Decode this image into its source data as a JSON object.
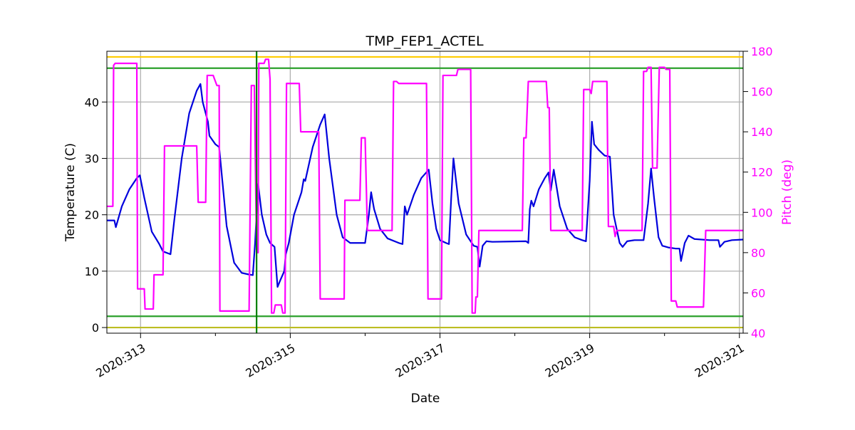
{
  "chart_data": {
    "type": "line",
    "title": "TMP_FEP1_ACTEL",
    "xlabel": "Date",
    "ylabel_left": "Temperature (C)",
    "ylabel_right": "Pitch (deg)",
    "xlim": [
      312.55,
      321.05
    ],
    "ylim_left": [
      -1,
      49
    ],
    "ylim_right": [
      40,
      180
    ],
    "x_ticks": [
      {
        "value": 313,
        "label": "2020:313"
      },
      {
        "value": 315,
        "label": "2020:315"
      },
      {
        "value": 317,
        "label": "2020:317"
      },
      {
        "value": 319,
        "label": "2020:319"
      },
      {
        "value": 321,
        "label": "2020:321"
      }
    ],
    "x_minor_ticks": [
      314,
      316,
      318,
      320
    ],
    "y_left_ticks": [
      0,
      10,
      20,
      30,
      40
    ],
    "y_right_ticks": [
      40,
      60,
      80,
      100,
      120,
      140,
      160,
      180
    ],
    "grid": true,
    "colors": {
      "temperature": "#0000dd",
      "pitch": "#ff00ff",
      "limit_yellow": "#ffcc00",
      "limit_green": "#2ca02c",
      "limit_olive": "#bcbd22",
      "marker_green": "#008000",
      "grid": "#b0b0b0"
    },
    "reference_lines": [
      {
        "y": 48,
        "color": "#ffcc00"
      },
      {
        "y": 46,
        "color": "#2ca02c"
      },
      {
        "y": 2,
        "color": "#2ca02c"
      },
      {
        "y": 0,
        "color": "#bcbd22"
      }
    ],
    "vertical_marker_x": 314.55,
    "series": [
      {
        "axis": "left",
        "color": "#0000dd",
        "points": [
          [
            312.55,
            19.0
          ],
          [
            312.65,
            19.0
          ],
          [
            312.67,
            17.8
          ],
          [
            312.75,
            21.5
          ],
          [
            312.85,
            24.5
          ],
          [
            312.95,
            26.5
          ],
          [
            312.99,
            27.0
          ],
          [
            313.05,
            23.0
          ],
          [
            313.15,
            17.0
          ],
          [
            313.25,
            14.8
          ],
          [
            313.3,
            13.5
          ],
          [
            313.4,
            13.0
          ],
          [
            313.45,
            19.0
          ],
          [
            313.55,
            30.0
          ],
          [
            313.65,
            38.0
          ],
          [
            313.75,
            42.0
          ],
          [
            313.8,
            43.2
          ],
          [
            313.83,
            40.0
          ],
          [
            313.9,
            36.5
          ],
          [
            313.92,
            34.0
          ],
          [
            314.0,
            32.5
          ],
          [
            314.05,
            32.0
          ],
          [
            314.1,
            25.0
          ],
          [
            314.15,
            18.0
          ],
          [
            314.25,
            11.5
          ],
          [
            314.35,
            9.7
          ],
          [
            314.45,
            9.4
          ],
          [
            314.5,
            9.3
          ],
          [
            314.53,
            15.0
          ],
          [
            314.57,
            25.5
          ],
          [
            314.62,
            20.0
          ],
          [
            314.68,
            16.5
          ],
          [
            314.73,
            15.0
          ],
          [
            314.79,
            14.3
          ],
          [
            314.83,
            7.2
          ],
          [
            314.87,
            8.5
          ],
          [
            314.92,
            10.0
          ],
          [
            314.94,
            13.0
          ],
          [
            314.98,
            15.0
          ],
          [
            315.05,
            20.0
          ],
          [
            315.15,
            24.0
          ],
          [
            315.18,
            26.3
          ],
          [
            315.2,
            26.0
          ],
          [
            315.3,
            32.0
          ],
          [
            315.4,
            36.0
          ],
          [
            315.46,
            37.8
          ],
          [
            315.52,
            30.0
          ],
          [
            315.62,
            20.0
          ],
          [
            315.7,
            16.0
          ],
          [
            315.8,
            15.0
          ],
          [
            316.0,
            15.0
          ],
          [
            316.05,
            20.0
          ],
          [
            316.08,
            24.0
          ],
          [
            316.12,
            21.0
          ],
          [
            316.2,
            17.5
          ],
          [
            316.3,
            15.8
          ],
          [
            316.45,
            15.0
          ],
          [
            316.5,
            14.8
          ],
          [
            316.53,
            21.5
          ],
          [
            316.56,
            20.0
          ],
          [
            316.65,
            23.5
          ],
          [
            316.75,
            26.5
          ],
          [
            316.85,
            28.0
          ],
          [
            316.9,
            22.0
          ],
          [
            316.95,
            17.5
          ],
          [
            317.0,
            15.5
          ],
          [
            317.08,
            15.0
          ],
          [
            317.12,
            14.8
          ],
          [
            317.15,
            23.0
          ],
          [
            317.18,
            30.0
          ],
          [
            317.25,
            22.0
          ],
          [
            317.35,
            16.5
          ],
          [
            317.45,
            14.5
          ],
          [
            317.5,
            14.3
          ],
          [
            317.53,
            10.8
          ],
          [
            317.57,
            14.5
          ],
          [
            317.62,
            15.3
          ],
          [
            317.7,
            15.2
          ],
          [
            318.15,
            15.3
          ],
          [
            318.18,
            15.0
          ],
          [
            318.2,
            21.0
          ],
          [
            318.22,
            22.5
          ],
          [
            318.25,
            21.5
          ],
          [
            318.32,
            24.5
          ],
          [
            318.4,
            26.5
          ],
          [
            318.45,
            27.5
          ],
          [
            318.48,
            24.3
          ],
          [
            318.52,
            28.0
          ],
          [
            318.6,
            21.5
          ],
          [
            318.7,
            17.5
          ],
          [
            318.8,
            16.0
          ],
          [
            318.9,
            15.5
          ],
          [
            318.95,
            15.3
          ],
          [
            319.0,
            26.0
          ],
          [
            319.03,
            36.5
          ],
          [
            319.06,
            32.5
          ],
          [
            319.12,
            31.5
          ],
          [
            319.2,
            30.5
          ],
          [
            319.27,
            30.3
          ],
          [
            319.32,
            20.0
          ],
          [
            319.4,
            15.0
          ],
          [
            319.44,
            14.3
          ],
          [
            319.5,
            15.3
          ],
          [
            319.6,
            15.5
          ],
          [
            319.72,
            15.5
          ],
          [
            319.78,
            22.0
          ],
          [
            319.82,
            28.2
          ],
          [
            319.86,
            23.0
          ],
          [
            319.92,
            16.0
          ],
          [
            319.97,
            14.5
          ],
          [
            320.05,
            14.2
          ],
          [
            320.15,
            14.0
          ],
          [
            320.2,
            14.0
          ],
          [
            320.22,
            11.8
          ],
          [
            320.27,
            15.0
          ],
          [
            320.32,
            16.3
          ],
          [
            320.4,
            15.7
          ],
          [
            320.6,
            15.5
          ],
          [
            320.72,
            15.5
          ],
          [
            320.74,
            14.3
          ],
          [
            320.8,
            15.2
          ],
          [
            320.9,
            15.5
          ],
          [
            321.05,
            15.6
          ]
        ]
      },
      {
        "axis": "right",
        "color": "#ff00ff",
        "points": [
          [
            312.55,
            103
          ],
          [
            312.63,
            103
          ],
          [
            312.64,
            173
          ],
          [
            312.66,
            174
          ],
          [
            312.95,
            174
          ],
          [
            312.96,
            62
          ],
          [
            313.05,
            62
          ],
          [
            313.06,
            52
          ],
          [
            313.17,
            52
          ],
          [
            313.18,
            69
          ],
          [
            313.3,
            69
          ],
          [
            313.32,
            133
          ],
          [
            313.75,
            133
          ],
          [
            313.77,
            105
          ],
          [
            313.87,
            105
          ],
          [
            313.89,
            168
          ],
          [
            313.97,
            168
          ],
          [
            314.02,
            163
          ],
          [
            314.05,
            163
          ],
          [
            314.06,
            51
          ],
          [
            314.45,
            51
          ],
          [
            314.48,
            163
          ],
          [
            314.52,
            163
          ],
          [
            314.55,
            80
          ],
          [
            314.57,
            80
          ],
          [
            314.58,
            174
          ],
          [
            314.65,
            174
          ],
          [
            314.67,
            176
          ],
          [
            314.71,
            176
          ],
          [
            314.73,
            166
          ],
          [
            314.75,
            50
          ],
          [
            314.78,
            50
          ],
          [
            314.8,
            54
          ],
          [
            314.88,
            54
          ],
          [
            314.9,
            50
          ],
          [
            314.93,
            50
          ],
          [
            314.95,
            164
          ],
          [
            315.08,
            164
          ],
          [
            315.12,
            164
          ],
          [
            315.14,
            140
          ],
          [
            315.38,
            140
          ],
          [
            315.4,
            57
          ],
          [
            315.72,
            57
          ],
          [
            315.73,
            106
          ],
          [
            315.93,
            106
          ],
          [
            315.95,
            137
          ],
          [
            316.0,
            137
          ],
          [
            316.03,
            91
          ],
          [
            316.17,
            91
          ],
          [
            316.2,
            91
          ],
          [
            316.33,
            91
          ],
          [
            316.36,
            91
          ],
          [
            316.38,
            165
          ],
          [
            316.42,
            165
          ],
          [
            316.45,
            164
          ],
          [
            316.82,
            164
          ],
          [
            316.84,
            57
          ],
          [
            317.0,
            57
          ],
          [
            317.02,
            57
          ],
          [
            317.04,
            168
          ],
          [
            317.22,
            168
          ],
          [
            317.24,
            171
          ],
          [
            317.41,
            171
          ],
          [
            317.43,
            50
          ],
          [
            317.47,
            50
          ],
          [
            317.48,
            58
          ],
          [
            317.5,
            58
          ],
          [
            317.52,
            91
          ],
          [
            318.02,
            91
          ],
          [
            318.05,
            91
          ],
          [
            318.1,
            91
          ],
          [
            318.12,
            137
          ],
          [
            318.15,
            137
          ],
          [
            318.18,
            165
          ],
          [
            318.42,
            165
          ],
          [
            318.44,
            152
          ],
          [
            318.46,
            152
          ],
          [
            318.48,
            91
          ],
          [
            318.88,
            91
          ],
          [
            318.9,
            91
          ],
          [
            318.92,
            161
          ],
          [
            319.0,
            161
          ],
          [
            319.02,
            159
          ],
          [
            319.04,
            165
          ],
          [
            319.23,
            165
          ],
          [
            319.25,
            93
          ],
          [
            319.3,
            93
          ],
          [
            319.32,
            93
          ],
          [
            319.34,
            88
          ],
          [
            319.36,
            91
          ],
          [
            319.7,
            91
          ],
          [
            319.72,
            170
          ],
          [
            319.76,
            170
          ],
          [
            319.78,
            172
          ],
          [
            319.82,
            172
          ],
          [
            319.84,
            122
          ],
          [
            319.9,
            122
          ],
          [
            319.93,
            172
          ],
          [
            320.0,
            172
          ],
          [
            320.02,
            171
          ],
          [
            320.07,
            171
          ],
          [
            320.09,
            56
          ],
          [
            320.15,
            56
          ],
          [
            320.17,
            53
          ],
          [
            320.5,
            53
          ],
          [
            320.52,
            53
          ],
          [
            320.55,
            91
          ],
          [
            320.75,
            91
          ],
          [
            321.05,
            91
          ]
        ]
      }
    ]
  }
}
